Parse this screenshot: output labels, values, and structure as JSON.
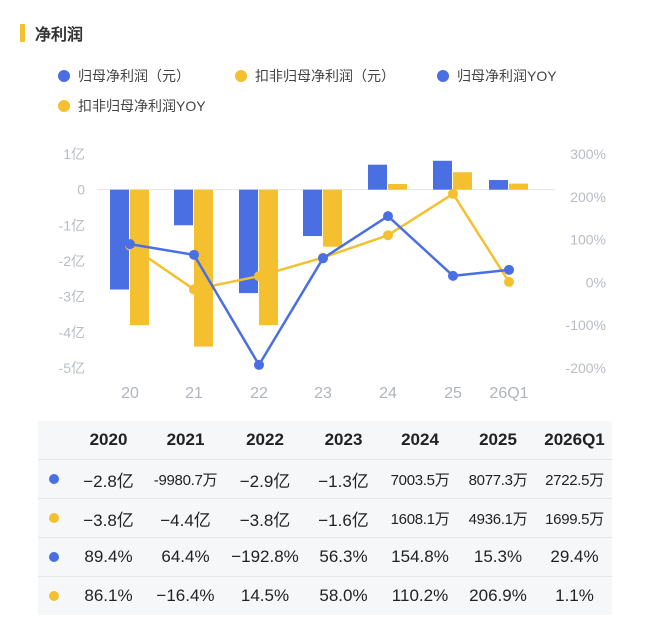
{
  "section_title": "净利润",
  "legend": [
    {
      "label": "归母净利润（元）",
      "color": "#4a6fe3",
      "icon": "circle-dot"
    },
    {
      "label": "扣非归母净利润（元）",
      "color": "#f5c030",
      "icon": "circle-dot"
    },
    {
      "label": "归母净利润YOY",
      "color": "#4a6fe3",
      "icon": "circle-dot"
    },
    {
      "label": "扣非归母净利润YOY",
      "color": "#f5c030",
      "icon": "circle-dot"
    }
  ],
  "chart_data": {
    "type": "bar+line",
    "categories": [
      "20",
      "21",
      "22",
      "23",
      "24",
      "25",
      "26Q1"
    ],
    "left_axis": {
      "ticks": [
        "1亿",
        "0",
        "-1亿",
        "-2亿",
        "-3亿",
        "-4亿",
        "-5亿"
      ],
      "range": [
        -5,
        1
      ],
      "unit": "亿"
    },
    "right_axis": {
      "ticks": [
        "300%",
        "200%",
        "100%",
        "0%",
        "-100%",
        "-200%"
      ],
      "range": [
        -200,
        300
      ],
      "unit": "%"
    },
    "grid": false,
    "series": [
      {
        "name": "归母净利润（元）",
        "kind": "bar",
        "axis": "left",
        "color": "#4a6fe3",
        "values": [
          -2.8,
          -0.998,
          -2.9,
          -1.3,
          0.7,
          0.81,
          0.27
        ]
      },
      {
        "name": "扣非归母净利润（元）",
        "kind": "bar",
        "axis": "left",
        "color": "#f5c030",
        "values": [
          -3.8,
          -4.4,
          -3.8,
          -1.6,
          0.16,
          0.49,
          0.17
        ]
      },
      {
        "name": "归母净利润YOY",
        "kind": "line",
        "axis": "right",
        "color": "#4a6fe3",
        "values": [
          89.4,
          64.4,
          -192.8,
          56.3,
          154.8,
          15.3,
          29.4
        ]
      },
      {
        "name": "扣非归母净利润YOY",
        "kind": "line",
        "axis": "right",
        "color": "#f5c030",
        "values": [
          86.1,
          -16.4,
          14.5,
          58.0,
          110.2,
          206.9,
          1.1
        ]
      }
    ]
  },
  "table": {
    "header": [
      "2020",
      "2021",
      "2022",
      "2023",
      "2024",
      "2025",
      "2026Q1"
    ],
    "rows": [
      {
        "color": "#4a6fe3",
        "cells": [
          "−2.8亿",
          "-9980.7万",
          "−2.9亿",
          "−1.3亿",
          "7003.5万",
          "8077.3万",
          "2722.5万"
        ]
      },
      {
        "color": "#f5c030",
        "cells": [
          "−3.8亿",
          "−4.4亿",
          "−3.8亿",
          "−1.6亿",
          "1608.1万",
          "4936.1万",
          "1699.5万"
        ]
      },
      {
        "color": "#4a6fe3",
        "cells": [
          "89.4%",
          "64.4%",
          "−192.8%",
          "56.3%",
          "154.8%",
          "15.3%",
          "29.4%"
        ]
      },
      {
        "color": "#f5c030",
        "cells": [
          "86.1%",
          "−16.4%",
          "14.5%",
          "58.0%",
          "110.2%",
          "206.9%",
          "1.1%"
        ]
      }
    ]
  }
}
